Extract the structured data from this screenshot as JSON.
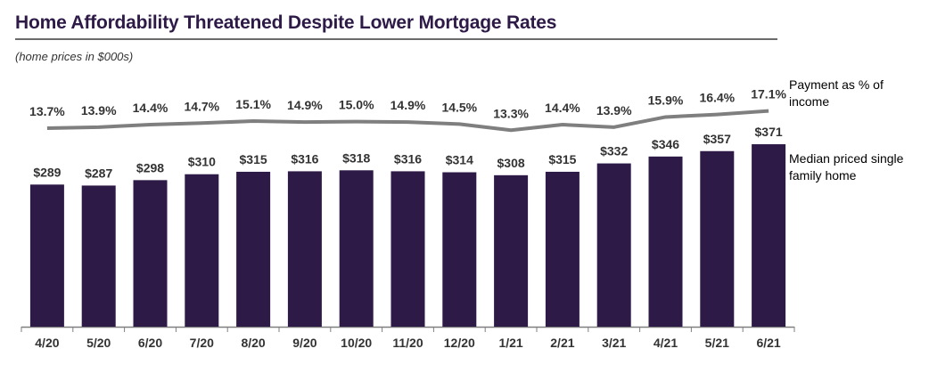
{
  "header": {
    "title": "Home Affordability Threatened Despite Lower Mortgage Rates",
    "subtitle": "(home prices in $000s)"
  },
  "colors": {
    "bar": "#2e1a47",
    "line": "#7f7f7f",
    "title": "#2e1a47"
  },
  "chart_data": {
    "type": "bar",
    "categories": [
      "4/20",
      "5/20",
      "6/20",
      "7/20",
      "8/20",
      "9/20",
      "10/20",
      "11/20",
      "12/20",
      "1/21",
      "2/21",
      "3/21",
      "4/21",
      "5/21",
      "6/21"
    ],
    "series": [
      {
        "name": "Median priced single family home",
        "type": "bar",
        "values": [
          289,
          287,
          298,
          310,
          315,
          316,
          318,
          316,
          314,
          308,
          315,
          332,
          346,
          357,
          371
        ],
        "labels": [
          "$289",
          "$287",
          "$298",
          "$310",
          "$315",
          "$316",
          "$318",
          "$316",
          "$314",
          "$308",
          "$315",
          "$332",
          "$346",
          "$357",
          "$371"
        ]
      },
      {
        "name": "Payment as % of income",
        "type": "line",
        "values": [
          13.7,
          13.9,
          14.4,
          14.7,
          15.1,
          14.9,
          15.0,
          14.9,
          14.5,
          13.3,
          14.4,
          13.9,
          15.9,
          16.4,
          17.1
        ],
        "labels": [
          "13.7%",
          "13.9%",
          "14.4%",
          "14.7%",
          "15.1%",
          "14.9%",
          "15.0%",
          "14.9%",
          "14.5%",
          "13.3%",
          "14.4%",
          "13.9%",
          "15.9%",
          "16.4%",
          "17.1%"
        ]
      }
    ],
    "legend": [
      "Payment as % of income",
      "Median priced single family home"
    ],
    "legend_placement": "right",
    "grid": false
  }
}
